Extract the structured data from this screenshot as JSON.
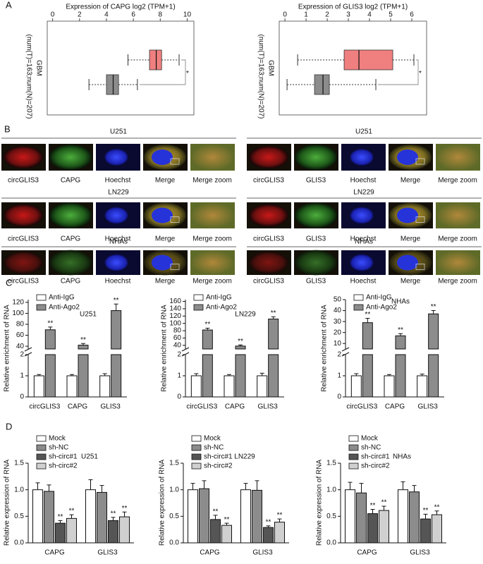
{
  "panel_labels": [
    "A",
    "B",
    "C",
    "D"
  ],
  "microscopy": [
    {
      "columns": [
        "circGLIS3",
        "CAPG",
        "Hoechst",
        "Merge",
        "Merge zoom"
      ],
      "rows": [
        "U251",
        "LN229",
        "NHAs"
      ]
    },
    {
      "columns": [
        "circGLIS3",
        "GLIS3",
        "Hoechst",
        "Merge",
        "Merge zoom"
      ],
      "rows": [
        "U251",
        "LN229",
        "NHAs"
      ]
    }
  ],
  "chart_data": [
    {
      "type": "boxplot",
      "title": "Expression of CAPG log2 (TPM+1)",
      "category": "GBM",
      "sample_note": "(num(T)=163;num(N)=207)",
      "xlim": [
        -0.4,
        10.5
      ],
      "xticks": [
        0,
        2,
        4,
        6,
        8,
        10
      ],
      "annotation": "*",
      "boxes": [
        {
          "color": "#f07f7f",
          "whisker_low": 5.6,
          "q1": 7.2,
          "median": 7.7,
          "q3": 8.1,
          "whisker_high": 9.4
        },
        {
          "color": "#8c8c8c",
          "whisker_low": 2.7,
          "q1": 4.0,
          "median": 4.5,
          "q3": 4.9,
          "whisker_high": 6.3
        }
      ]
    },
    {
      "type": "boxplot",
      "title": "Expression of GLIS3 log2 (TPM+1)",
      "category": "GBM",
      "sample_note": "(num(T)=163;num(N)=207)",
      "xlim": [
        -0.27,
        6.7
      ],
      "xticks": [
        0,
        1,
        2,
        3,
        4,
        5,
        6
      ],
      "annotation": "*",
      "boxes": [
        {
          "color": "#f07f7f",
          "whisker_low": 0.6,
          "q1": 2.8,
          "median": 3.5,
          "q3": 5.1,
          "whisker_high": 6.1
        },
        {
          "color": "#8c8c8c",
          "whisker_low": 0.1,
          "q1": 1.4,
          "median": 1.8,
          "q3": 2.1,
          "whisker_high": 4.3
        }
      ]
    },
    {
      "type": "bar",
      "title": "U251",
      "ylabel": "Relative enrichment of RNA",
      "categories": [
        "circGLIS3",
        "CAPG",
        "GLIS3"
      ],
      "ylim": [
        0,
        2
      ],
      "yticks": [
        0,
        1,
        2
      ],
      "ylim_upper": [
        35,
        125
      ],
      "yticks_upper": [
        40,
        60,
        80,
        100,
        120
      ],
      "series": [
        {
          "name": "Anti-IgG",
          "color": "#ffffff",
          "values": [
            1,
            1,
            1
          ],
          "errors": [
            0.06,
            0.06,
            0.1
          ]
        },
        {
          "name": "Anti-Ago2",
          "color": "#8c8c8c",
          "values": [
            70,
            42,
            105
          ],
          "errors": [
            5,
            3,
            12
          ],
          "significance": [
            "**",
            "**",
            "**"
          ]
        }
      ]
    },
    {
      "type": "bar",
      "title": "LN229",
      "ylabel": "Relative enrichment of RNA",
      "categories": [
        "circGLIS3",
        "CAPG",
        "GLIS3"
      ],
      "ylim": [
        0,
        2
      ],
      "yticks": [
        0,
        1,
        2
      ],
      "ylim_upper": [
        30,
        165
      ],
      "yticks_upper": [
        40,
        60,
        80,
        100,
        120,
        140,
        160
      ],
      "series": [
        {
          "name": "Anti-IgG",
          "color": "#ffffff",
          "values": [
            1,
            1,
            1
          ],
          "errors": [
            0.1,
            0.06,
            0.12
          ]
        },
        {
          "name": "Anti-Ago2",
          "color": "#8c8c8c",
          "values": [
            82,
            38,
            112
          ],
          "errors": [
            5,
            3,
            6
          ],
          "significance": [
            "**",
            "**",
            "**"
          ]
        }
      ]
    },
    {
      "type": "bar",
      "title": "NHAs",
      "ylabel": "Relative enrichment of RNA",
      "categories": [
        "circGLIS3",
        "CAPG",
        "GLIS3"
      ],
      "ylim": [
        0,
        2
      ],
      "yticks": [
        0,
        1,
        2
      ],
      "ylim_upper": [
        5,
        50
      ],
      "yticks_upper": [
        10,
        20,
        30,
        40,
        50
      ],
      "series": [
        {
          "name": "Anti-IgG",
          "color": "#ffffff",
          "values": [
            1,
            1,
            1
          ],
          "errors": [
            0.1,
            0.06,
            0.08
          ]
        },
        {
          "name": "Anti-Ago2",
          "color": "#8c8c8c",
          "values": [
            29,
            17,
            37
          ],
          "errors": [
            4,
            2,
            3
          ],
          "significance": [
            "**",
            "**",
            "**"
          ]
        }
      ]
    },
    {
      "type": "bar",
      "title": "U251",
      "ylabel": "Relative expression of RNA",
      "categories": [
        "CAPG",
        "GLIS3"
      ],
      "ylim": [
        0,
        1.5
      ],
      "yticks": [
        {
          "value": 0,
          "label": "0.0"
        },
        0.5,
        {
          "value": 1,
          "label": "1.0"
        },
        1.5
      ],
      "series": [
        {
          "name": "Mock",
          "color": "#ffffff",
          "values": [
            1.0,
            1.0
          ],
          "errors": [
            0.13,
            0.19
          ]
        },
        {
          "name": "sh-NC",
          "color": "#8c8c8c",
          "values": [
            0.97,
            0.95
          ],
          "errors": [
            0.12,
            0.13
          ]
        },
        {
          "name": "sh-circ#1",
          "color": "#555555",
          "values": [
            0.37,
            0.42
          ],
          "errors": [
            0.05,
            0.06
          ],
          "significance": [
            "**",
            "**"
          ]
        },
        {
          "name": "sh-circ#2",
          "color": "#d0d0d0",
          "values": [
            0.46,
            0.49
          ],
          "errors": [
            0.07,
            0.09
          ],
          "significance": [
            "**",
            "**"
          ]
        }
      ]
    },
    {
      "type": "bar",
      "title": "LN229",
      "ylabel": "Relative expression of RNA",
      "categories": [
        "CAPG",
        "GLIS3"
      ],
      "ylim": [
        0,
        1.5
      ],
      "yticks": [
        {
          "value": 0,
          "label": "0.0"
        },
        0.5,
        {
          "value": 1,
          "label": "1.0"
        },
        1.5
      ],
      "series": [
        {
          "name": "Mock",
          "color": "#ffffff",
          "values": [
            1.0,
            1.0
          ],
          "errors": [
            0.12,
            0.12
          ]
        },
        {
          "name": "sh-NC",
          "color": "#8c8c8c",
          "values": [
            1.02,
            0.99
          ],
          "errors": [
            0.15,
            0.18
          ]
        },
        {
          "name": "sh-circ#1",
          "color": "#555555",
          "values": [
            0.44,
            0.29
          ],
          "errors": [
            0.08,
            0.03
          ],
          "significance": [
            "**",
            "**"
          ]
        },
        {
          "name": "sh-circ#2",
          "color": "#d0d0d0",
          "values": [
            0.33,
            0.39
          ],
          "errors": [
            0.04,
            0.06
          ],
          "significance": [
            "**",
            "**"
          ]
        }
      ]
    },
    {
      "type": "bar",
      "title": "NHAs",
      "ylabel": "Relative expression of RNA",
      "categories": [
        "CAPG",
        "GLIS3"
      ],
      "ylim": [
        0,
        1.5
      ],
      "yticks": [
        {
          "value": 0,
          "label": "0.0"
        },
        0.5,
        {
          "value": 1,
          "label": "1.0"
        },
        1.5
      ],
      "series": [
        {
          "name": "Mock",
          "color": "#ffffff",
          "values": [
            1.0,
            1.0
          ],
          "errors": [
            0.14,
            0.15
          ]
        },
        {
          "name": "sh-NC",
          "color": "#8c8c8c",
          "values": [
            0.94,
            0.96
          ],
          "errors": [
            0.18,
            0.12
          ]
        },
        {
          "name": "sh-circ#1",
          "color": "#555555",
          "values": [
            0.55,
            0.45
          ],
          "errors": [
            0.08,
            0.09
          ],
          "significance": [
            "**",
            "**"
          ]
        },
        {
          "name": "sh-circ#2",
          "color": "#d0d0d0",
          "values": [
            0.61,
            0.53
          ],
          "errors": [
            0.08,
            0.07
          ],
          "significance": [
            "**",
            "**"
          ]
        }
      ]
    }
  ]
}
